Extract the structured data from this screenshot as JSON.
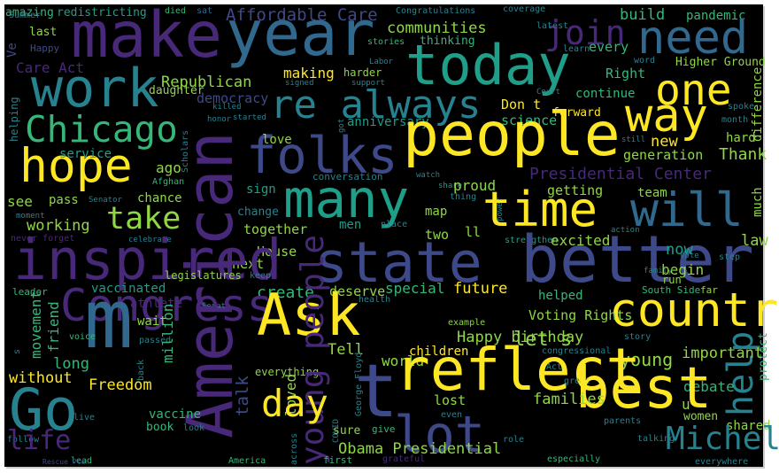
{
  "word_cloud": {
    "words": [
      "amazing",
      "redistricting",
      "died",
      "sat",
      "Affordable Care",
      "Congratulations",
      "coverage",
      "build",
      "pandemic",
      "make",
      "year",
      "join",
      "need",
      "last",
      "Happy",
      "Ve",
      "communities",
      "thinking",
      "stories",
      "latest",
      "every",
      "learn",
      "word",
      "Higher Ground",
      "today",
      "Care Act",
      "daughter",
      "work",
      "Republican",
      "democracy",
      "making",
      "harder",
      "Labor",
      "support",
      "signed",
      "re always",
      "Right",
      "one",
      "continue",
      "Don t",
      "Court",
      "difference",
      "way",
      "science",
      "forward",
      "anniversary",
      "got",
      "honor",
      "started",
      "killed",
      "Chicago",
      "helping",
      "people",
      "folks",
      "hope",
      "service",
      "ago",
      "love",
      "new",
      "hard",
      "Thank",
      "generation",
      "still",
      "spoke",
      "month",
      "Scholars",
      "Afghan",
      "American",
      "many",
      "conversation",
      "watch",
      "share",
      "Presidential Center",
      "proud",
      "thing",
      "power",
      "time",
      "getting",
      "team",
      "much",
      "will",
      "take",
      "see",
      "pass",
      "Senator",
      "chance",
      "moment",
      "sign",
      "change",
      "map",
      "place",
      "men",
      "two",
      "ll",
      "strengthen",
      "action",
      "excited",
      "law",
      "working",
      "never forget",
      "celebrate",
      "together",
      "House",
      "next",
      "inspired",
      "state",
      "better",
      "now",
      "vote",
      "step",
      "begin",
      "family",
      "run",
      "legislatures",
      "keep",
      "vaccinated",
      "create",
      "leader",
      "South Side",
      "far",
      "athlete",
      "Senate",
      "deserve",
      "special",
      "future",
      "health",
      "helped",
      "Congress",
      "m",
      "s",
      "movement",
      "friend",
      "voice",
      "wait",
      "passed",
      "Ask",
      "country",
      "help",
      "protect",
      "Voting Rights",
      "example",
      "Happy birthday",
      "let s",
      "story",
      "congressional",
      "Tell",
      "children",
      "important",
      "million",
      "back",
      "long",
      "world",
      "young",
      "Act",
      "without",
      "Freedom",
      "everything",
      "talk",
      "young people",
      "loved",
      "COVID",
      "George Floyd",
      "reflect",
      "great",
      "debate",
      "best",
      "day",
      "t",
      "u",
      "women",
      "Go",
      "live",
      "vaccine",
      "book",
      "look",
      "lost",
      "families",
      "even",
      "parents",
      "shared",
      "follow",
      "sure",
      "give",
      "role",
      "talking",
      "lot",
      "Michelle",
      "life",
      "Obama Presidential",
      "across",
      "first",
      "grateful",
      "especially",
      "everywhere",
      "lead",
      "America",
      "Rescue Plan",
      "Summer"
    ]
  }
}
